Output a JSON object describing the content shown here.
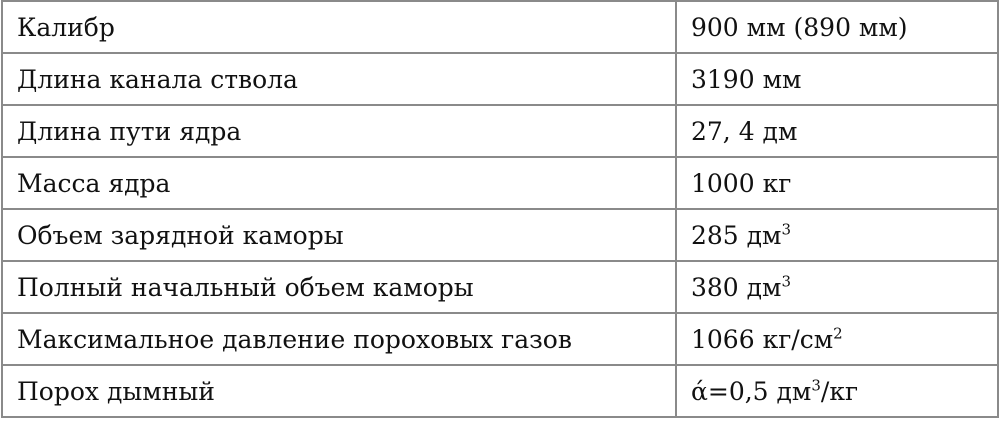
{
  "rows": [
    {
      "param": "Калибр",
      "value": "900 мм (890 мм)",
      "sup": "",
      "suffix": ""
    },
    {
      "param": "Длина канала ствола",
      "value": "3190 мм",
      "sup": "",
      "suffix": ""
    },
    {
      "param": "Длина пути ядра",
      "value": "27, 4 дм",
      "sup": "",
      "suffix": ""
    },
    {
      "param": "Масса ядра",
      "value": "1000 кг",
      "sup": "",
      "suffix": ""
    },
    {
      "param": "Объем зарядной каморы",
      "value": "285 дм",
      "sup": "3",
      "suffix": ""
    },
    {
      "param": "Полный начальный объем каморы",
      "value": "380 дм",
      "sup": "3",
      "suffix": ""
    },
    {
      "param": "Максимальное давление пороховых газов",
      "value": "1066 кг/см",
      "sup": "2",
      "suffix": ""
    },
    {
      "param": "Порох дымный",
      "value": "ά=0,5 дм",
      "sup": "3",
      "suffix": "/кг"
    }
  ]
}
